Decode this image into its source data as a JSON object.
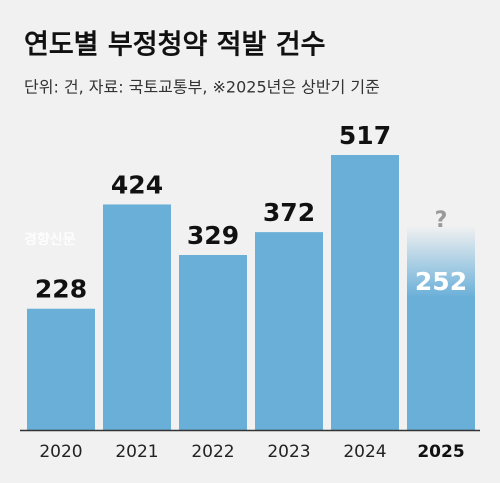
{
  "chart_data": {
    "type": "bar",
    "title": "연도별 부정청약 적발 건수",
    "subtitle": "단위: 건, 자료: 국토교통부, ※2025년은 상반기 기준",
    "watermark": "경향신문",
    "annotation": "?",
    "categories": [
      "2020",
      "2021",
      "2022",
      "2023",
      "2024",
      "2025"
    ],
    "values": [
      228,
      424,
      329,
      372,
      517,
      252
    ],
    "color": "#69afd8"
  }
}
